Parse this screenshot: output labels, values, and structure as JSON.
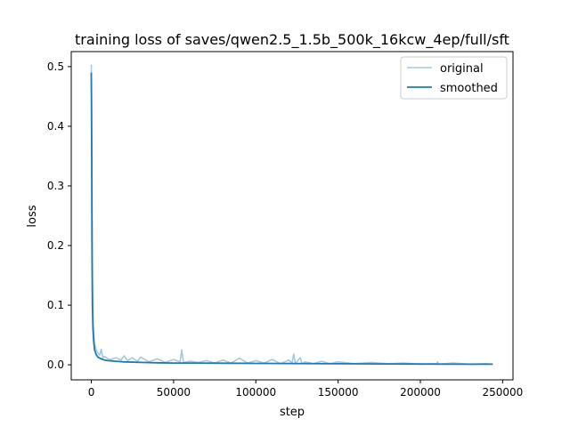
{
  "chart_data": {
    "type": "line",
    "title": "training loss of saves/qwen2.5_1.5b_500k_16kcw_4ep/full/sft",
    "xlabel": "step",
    "ylabel": "loss",
    "xlim": [
      -12200,
      256300
    ],
    "ylim": [
      -0.0252,
      0.5252
    ],
    "xticks": [
      0,
      50000,
      100000,
      150000,
      200000,
      250000
    ],
    "xtick_labels": [
      "0",
      "50000",
      "100000",
      "150000",
      "200000",
      "250000"
    ],
    "yticks": [
      0.0,
      0.1,
      0.2,
      0.3,
      0.4,
      0.5
    ],
    "ytick_labels": [
      "0.0",
      "0.1",
      "0.2",
      "0.3",
      "0.4",
      "0.5"
    ],
    "grid": false,
    "legend_position": "top-right",
    "series": [
      {
        "name": "original",
        "color": "#1f77b4",
        "alpha": 0.4,
        "x": [
          0,
          200,
          400,
          700,
          1000,
          1500,
          2000,
          3000,
          4000,
          5000,
          6000,
          7000,
          8000,
          10000,
          12000,
          15000,
          18000,
          20000,
          22000,
          25000,
          28000,
          30000,
          35000,
          40000,
          45000,
          50000,
          54000,
          55000,
          56000,
          60000,
          65000,
          70000,
          75000,
          80000,
          85000,
          90000,
          95000,
          100000,
          105000,
          110000,
          115000,
          120000,
          122000,
          123000,
          124000,
          127000,
          128000,
          130000,
          135000,
          140000,
          145000,
          150000,
          160000,
          170000,
          180000,
          190000,
          200000,
          210000,
          210500,
          211000,
          220000,
          230000,
          240000,
          244000
        ],
        "y": [
          0.503,
          0.45,
          0.3,
          0.15,
          0.08,
          0.05,
          0.035,
          0.025,
          0.02,
          0.016,
          0.026,
          0.012,
          0.014,
          0.01,
          0.009,
          0.012,
          0.008,
          0.015,
          0.007,
          0.012,
          0.006,
          0.013,
          0.005,
          0.01,
          0.004,
          0.009,
          0.005,
          0.025,
          0.004,
          0.006,
          0.004,
          0.007,
          0.003,
          0.008,
          0.003,
          0.011,
          0.003,
          0.007,
          0.003,
          0.009,
          0.002,
          0.008,
          0.003,
          0.018,
          0.002,
          0.012,
          0.002,
          0.005,
          0.002,
          0.006,
          0.002,
          0.005,
          0.002,
          0.004,
          0.002,
          0.003,
          0.001,
          0.002,
          0.005,
          0.001,
          0.003,
          0.001,
          0.002,
          0.001
        ]
      },
      {
        "name": "smoothed",
        "color": "#1f77b4",
        "alpha": 1.0,
        "x": [
          0,
          200,
          400,
          700,
          1000,
          1500,
          2000,
          3000,
          4000,
          6000,
          8000,
          10000,
          15000,
          20000,
          30000,
          40000,
          50000,
          60000,
          80000,
          100000,
          120000,
          150000,
          180000,
          200000,
          220000,
          244000
        ],
        "y": [
          0.49,
          0.38,
          0.2,
          0.1,
          0.06,
          0.038,
          0.025,
          0.017,
          0.013,
          0.01,
          0.008,
          0.007,
          0.006,
          0.005,
          0.004,
          0.0035,
          0.003,
          0.003,
          0.0027,
          0.0024,
          0.0022,
          0.0018,
          0.0015,
          0.0013,
          0.0011,
          0.001
        ]
      }
    ]
  }
}
